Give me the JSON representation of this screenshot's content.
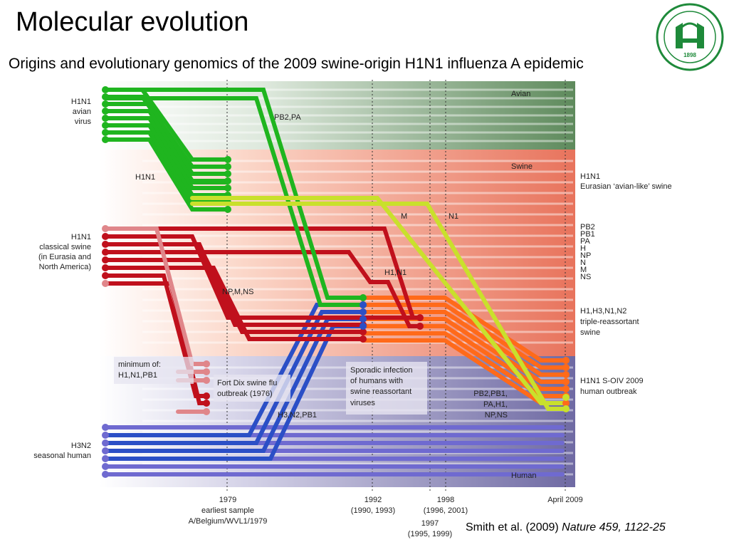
{
  "slide": {
    "title": "Molecular evolution",
    "subtitle": "Origins and evolutionary genomics of the 2009 swine-origin H1N1 influenza A epidemic"
  },
  "logo": {
    "year": "1898"
  },
  "bands": {
    "avian": "Avian",
    "swine": "Swine",
    "human": "Human"
  },
  "left_labels": {
    "avian": [
      "H1N1",
      "avian",
      "virus"
    ],
    "classical": [
      "H1N1",
      "classical swine",
      "(in Eurasia and",
      "North America)"
    ],
    "human": [
      "H3N2",
      "seasonal human"
    ]
  },
  "right_labels": {
    "eurasian": [
      "H1N1",
      "Eurasian ‘avian-like’ swine"
    ],
    "segments": [
      "PB2",
      "PB1",
      "PA",
      "H",
      "NP",
      "N",
      "M",
      "NS"
    ],
    "triple": [
      "H1,H3,N1,N2",
      "triple-reassortant",
      "swine"
    ],
    "soiv": [
      "H1N1 S-OIV 2009",
      "human outbreak"
    ]
  },
  "annotations": {
    "pb2pa": "PB2,PA",
    "h1n1_swine": "H1N1",
    "m": "M",
    "n1": "N1",
    "h1n1_classic": "H1,N1",
    "npmns": "NP,M,NS",
    "minimum": [
      "minimum of:",
      "H1,N1,PB1"
    ],
    "fortdix": [
      "Fort Dix swine flu",
      "outbreak (1976)"
    ],
    "h3n2pb1": "H3,N2,PB1",
    "sporadic": [
      "Sporadic infection",
      "of humans with",
      "swine reassortant",
      "viruses"
    ],
    "pb2pb1": [
      "PB2,PB1,",
      "PA,H1,",
      "NP,NS"
    ]
  },
  "timeline": {
    "t1979": [
      "1979",
      "earliest sample",
      "A/Belgium/WVL1/1979"
    ],
    "t1992": [
      "1992",
      "(1990, 1993)"
    ],
    "t1997": [
      "1997",
      "(1995, 1999)"
    ],
    "t1998": [
      "1998",
      "(1996, 2001)"
    ],
    "t2009": [
      "April 2009"
    ]
  },
  "citation": {
    "authors": "Smith et al. (2009) ",
    "journal": "Nature 459, 1122-25"
  },
  "colors": {
    "avian_band": "#5e8a5c",
    "swine_band": "#e8735c",
    "human_band": "#6f6aa3",
    "green": "#1fb51f",
    "yellow": "#c9e02c",
    "red": "#c0101c",
    "orange": "#ff6a1a",
    "blue": "#2b4fc6",
    "purple": "#6f6ad0"
  }
}
